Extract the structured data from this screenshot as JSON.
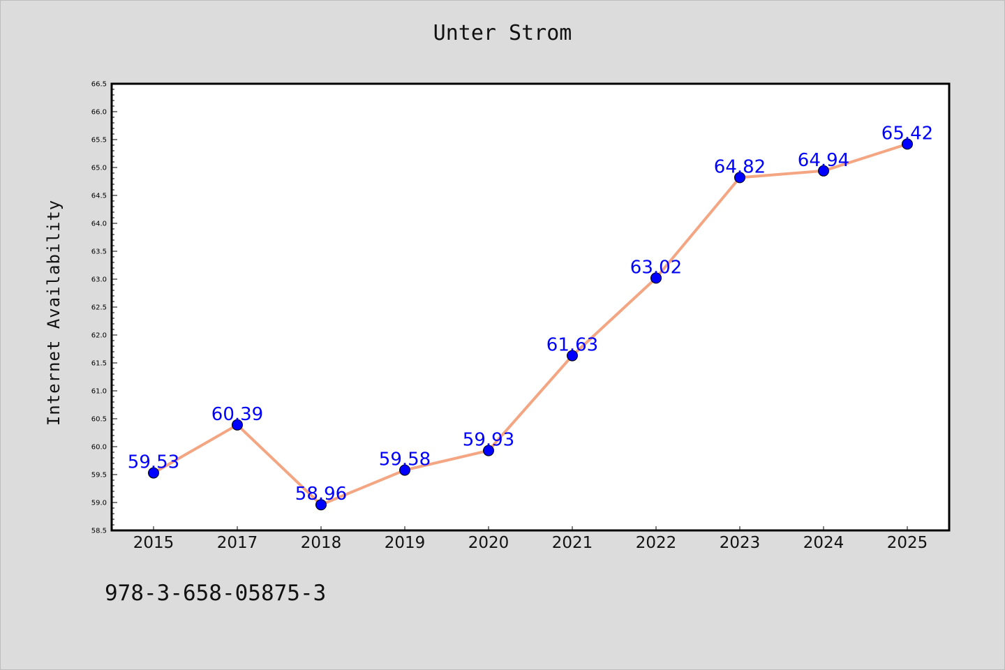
{
  "chart_data": {
    "type": "line",
    "title": "Unter Strom",
    "xlabel": "",
    "ylabel": "Internet Availability",
    "categories": [
      "2015",
      "2017",
      "2018",
      "2019",
      "2020",
      "2021",
      "2022",
      "2023",
      "2024",
      "2025"
    ],
    "series": [
      {
        "values": [
          59.53,
          60.39,
          58.96,
          59.58,
          59.93,
          61.63,
          63.02,
          64.82,
          64.94,
          65.42
        ],
        "data_labels": [
          "59.53",
          "60.39",
          "58.96",
          "59.58",
          "59.93",
          "61.63",
          "63.02",
          "64.82",
          "64.94",
          "65.42"
        ]
      }
    ],
    "ylim": [
      58.5,
      66.5
    ],
    "yticks": [
      "58.5",
      "59.0",
      "59.5",
      "60.0",
      "60.5",
      "61.0",
      "61.5",
      "62.0",
      "62.5",
      "63.0",
      "63.5",
      "64.0",
      "64.5",
      "65.0",
      "65.5",
      "66.0",
      "66.5"
    ],
    "grid": false,
    "legend": "none",
    "colors": {
      "line": "#f4a582",
      "marker": "#0000ff",
      "label": "#0000ff",
      "background": "#dcdcdc",
      "plot_area": "#ffffff"
    }
  },
  "footer": {
    "code": "978-3-658-05875-3"
  }
}
